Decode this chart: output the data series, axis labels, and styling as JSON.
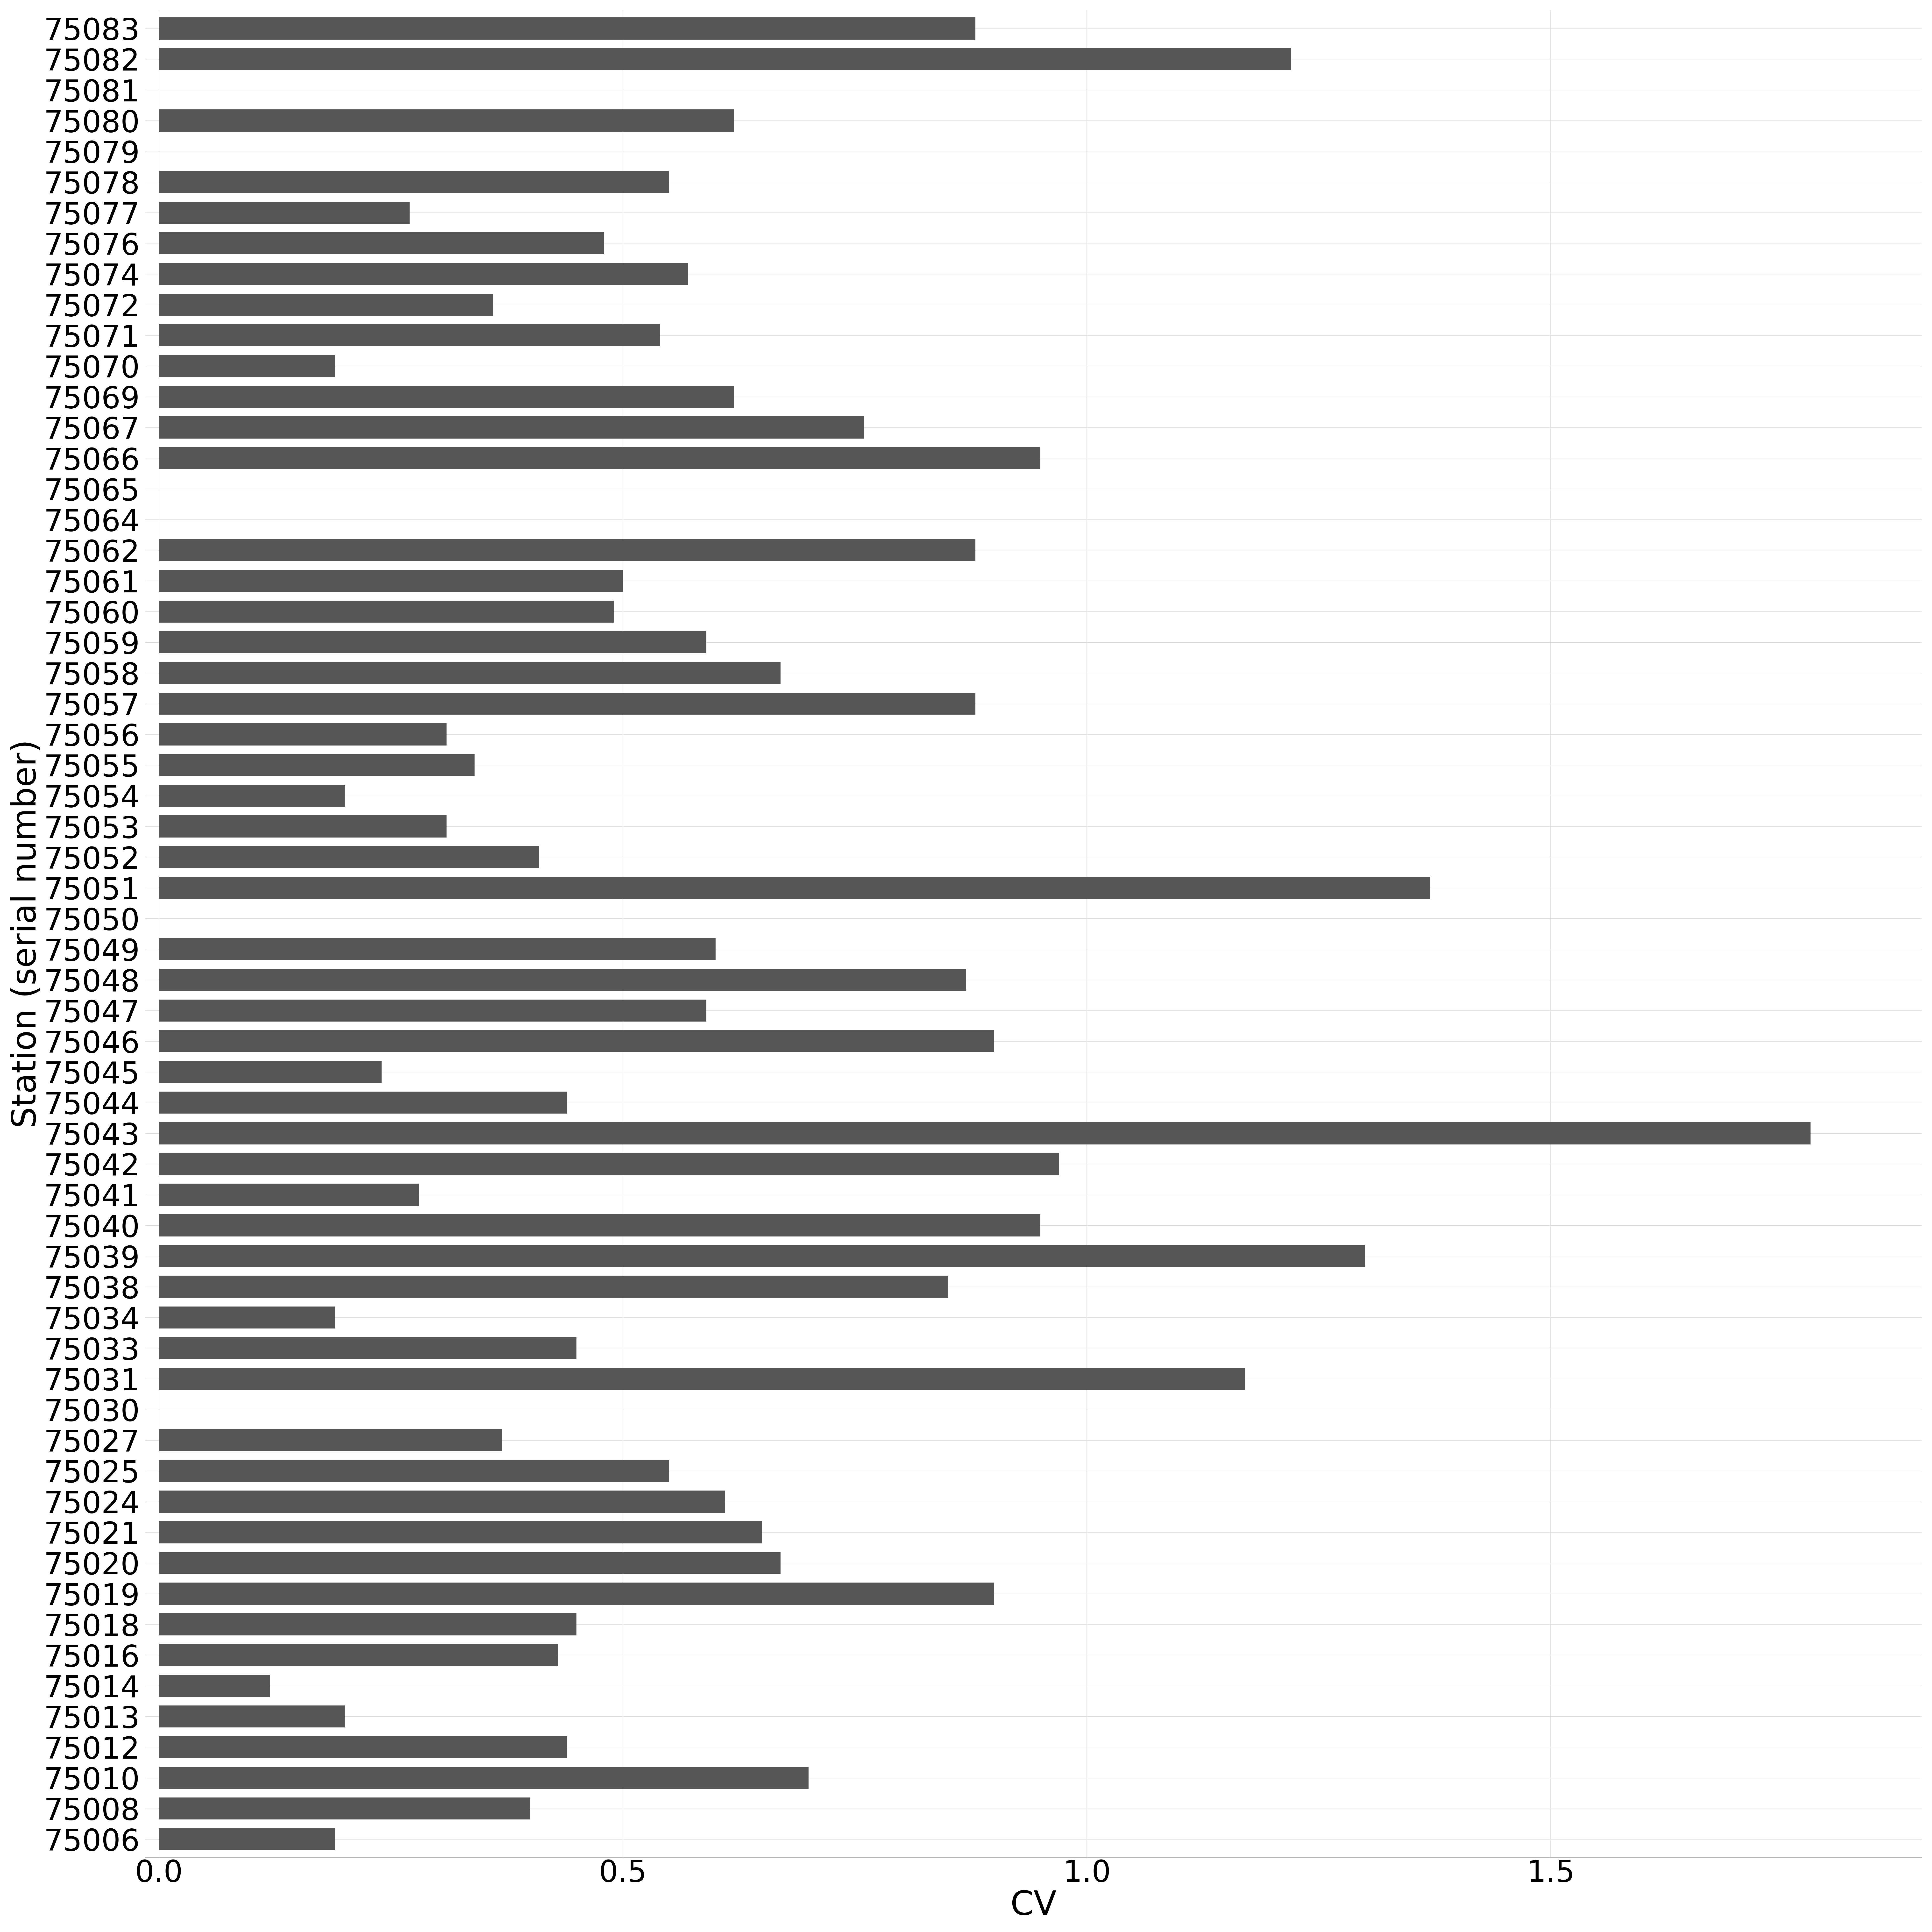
{
  "stations": [
    "75083",
    "75082",
    "75081",
    "75080",
    "75079",
    "75078",
    "75077",
    "75076",
    "75074",
    "75072",
    "75071",
    "75070",
    "75069",
    "75067",
    "75066",
    "75065",
    "75064",
    "75062",
    "75061",
    "75060",
    "75059",
    "75058",
    "75057",
    "75056",
    "75055",
    "75054",
    "75053",
    "75052",
    "75051",
    "75050",
    "75049",
    "75048",
    "75047",
    "75046",
    "75045",
    "75044",
    "75043",
    "75042",
    "75041",
    "75040",
    "75039",
    "75038",
    "75034",
    "75033",
    "75031",
    "75030",
    "75027",
    "75025",
    "75024",
    "75021",
    "75020",
    "75019",
    "75018",
    "75016",
    "75014",
    "75013",
    "75012",
    "75010",
    "75008",
    "75006"
  ],
  "values": [
    0.88,
    1.22,
    0.0,
    0.62,
    0.0,
    0.55,
    0.27,
    0.48,
    0.57,
    0.36,
    0.54,
    0.19,
    0.62,
    0.76,
    0.95,
    0.0,
    0.0,
    0.88,
    0.5,
    0.49,
    0.59,
    0.67,
    0.88,
    0.31,
    0.34,
    0.2,
    0.31,
    0.41,
    1.37,
    0.0,
    0.6,
    0.87,
    0.59,
    0.9,
    0.24,
    0.44,
    1.78,
    0.97,
    0.28,
    0.95,
    1.3,
    0.85,
    0.19,
    0.45,
    1.17,
    0.0,
    0.37,
    0.55,
    0.61,
    0.65,
    0.67,
    0.9,
    0.45,
    0.43,
    0.12,
    0.2,
    0.44,
    0.7,
    0.4,
    0.19
  ],
  "bar_color": "#555555",
  "background_color": "#ffffff",
  "grid_color": "#dddddd",
  "xlabel": "CV",
  "ylabel": "Station (serial number)",
  "xlim": [
    -0.015,
    1.9
  ],
  "xlabel_fontsize": 100,
  "ylabel_fontsize": 100,
  "tick_fontsize": 90,
  "bar_height": 0.72
}
